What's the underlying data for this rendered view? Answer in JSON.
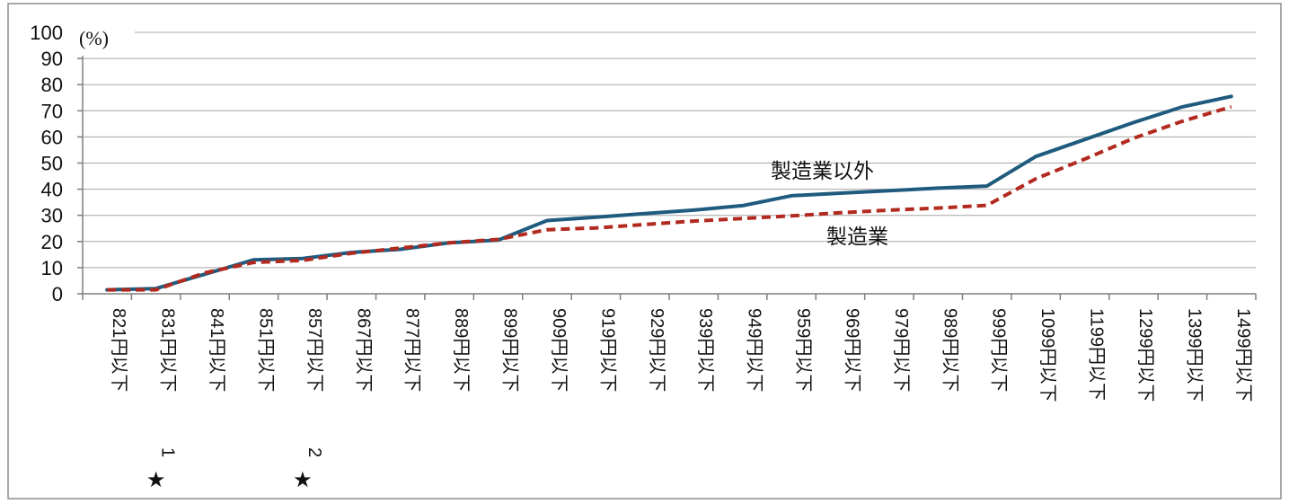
{
  "chart_data": {
    "type": "line",
    "unit_label": "(%)",
    "ylim": [
      0,
      100
    ],
    "yticks": [
      0,
      10,
      20,
      30,
      40,
      50,
      60,
      70,
      80,
      90,
      100
    ],
    "grid": true,
    "categories": [
      "821円以下",
      "831円以下",
      "841円以下",
      "851円以下",
      "857円以下",
      "867円以下",
      "877円以下",
      "889円以下",
      "899円以下",
      "909円以下",
      "919円以下",
      "929円以下",
      "939円以下",
      "949円以下",
      "959円以下",
      "969円以下",
      "979円以下",
      "989円以下",
      "999円以下",
      "1099円以下",
      "1199円以下",
      "1299円以下",
      "1399円以下",
      "1499円以下"
    ],
    "series": [
      {
        "name": "製造業以外",
        "color": "#1f5b7e",
        "style": "solid",
        "values": [
          1.5,
          2,
          7.5,
          13,
          13.5,
          15.8,
          17,
          19.5,
          20.5,
          28,
          29.3,
          30.7,
          32,
          33.7,
          37.5,
          38.5,
          39.4,
          40.4,
          41.2,
          52.5,
          59,
          65.5,
          71.5,
          75.5
        ]
      },
      {
        "name": "製造業",
        "color": "#b22a1f",
        "style": "dashed",
        "values": [
          1.5,
          1.5,
          8,
          12,
          12.8,
          15.5,
          17.5,
          19.5,
          20.8,
          24.5,
          25.2,
          26.5,
          27.8,
          28.8,
          29.8,
          31,
          32,
          32.8,
          33.8,
          44,
          51.5,
          59.5,
          66,
          71.5
        ]
      }
    ],
    "footnotes": [
      {
        "category_index": 1,
        "symbol": "★",
        "number": "1"
      },
      {
        "category_index": 4,
        "symbol": "★",
        "number": "2"
      }
    ]
  }
}
